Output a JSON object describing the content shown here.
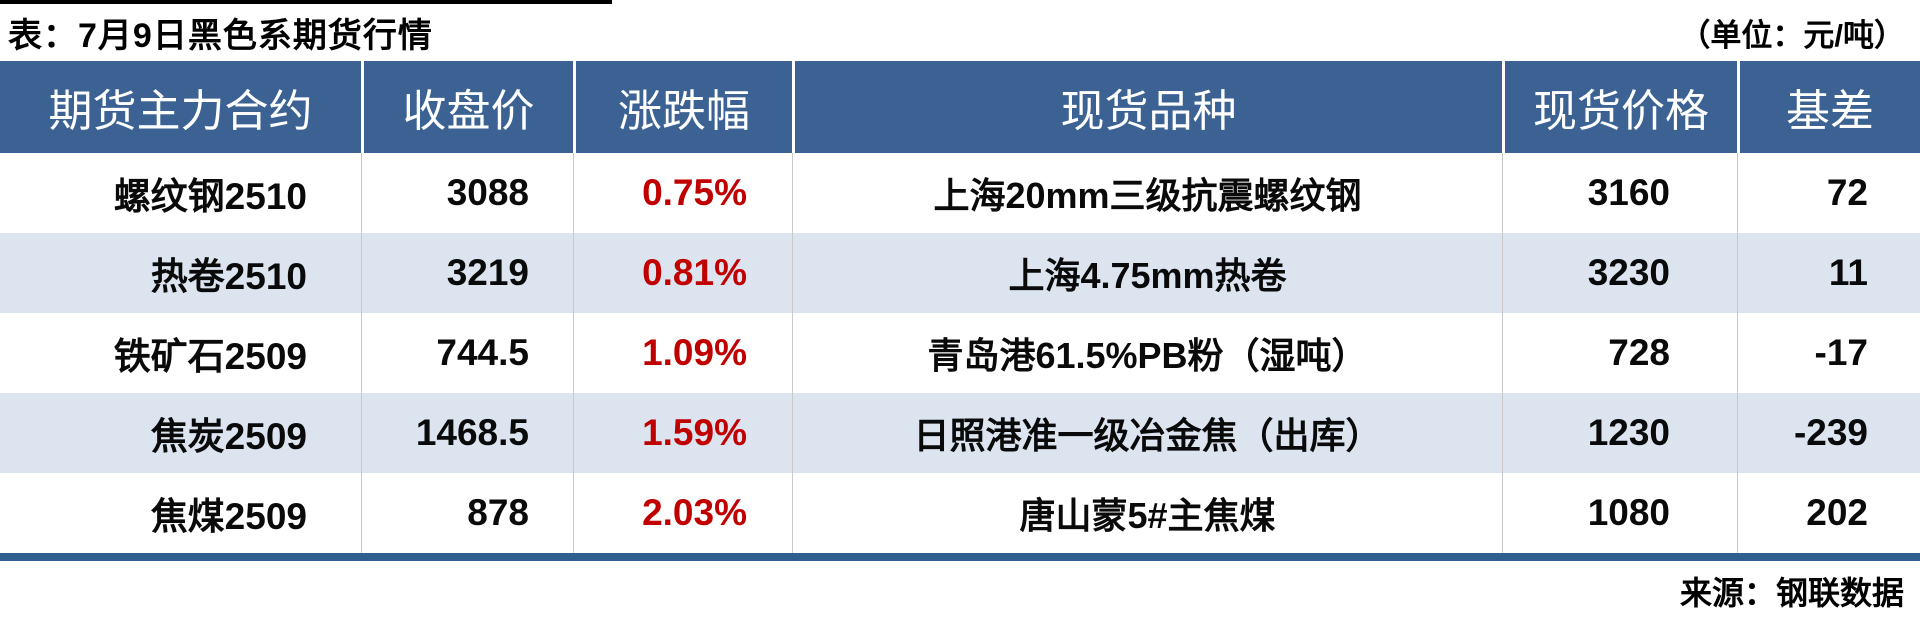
{
  "chart_data": {
    "type": "table",
    "title": "表：7月9日黑色系期货行情",
    "unit_label": "（单位：元/吨）",
    "source": "来源：钢联数据",
    "columns": [
      "期货主力合约",
      "收盘价",
      "涨跌幅",
      "现货品种",
      "现货价格",
      "基差"
    ],
    "rows": [
      [
        "螺纹钢2510",
        "3088",
        "0.75%",
        "上海20mm三级抗震螺纹钢",
        "3160",
        "72"
      ],
      [
        "热卷2510",
        "3219",
        "0.81%",
        "上海4.75mm热卷",
        "3230",
        "11"
      ],
      [
        "铁矿石2509",
        "744.5",
        "1.09%",
        "青岛港61.5%PB粉（湿吨）",
        "728",
        "-17"
      ],
      [
        "焦炭2509",
        "1468.5",
        "1.59%",
        "日照港准一级冶金焦（出库）",
        "1230",
        "-239"
      ],
      [
        "焦煤2509",
        "878",
        "2.03%",
        "唐山蒙5#主焦煤",
        "1080",
        "202"
      ]
    ],
    "layout": {
      "header_align": "center",
      "change_column_style": "red",
      "alt_row_shading": true,
      "legend": "none",
      "grid": "column-separators-only"
    },
    "colors": {
      "header_bg": "#3b6293",
      "header_text": "#ffffff",
      "alt_row_bg": "#dce4f0",
      "row_bg": "#ffffff",
      "change_red": "#c00000",
      "body_text": "#0a0a0a",
      "top_line": "#000000",
      "bottom_line": "#2f5f8f",
      "column_separator": "#c9c9c9"
    }
  }
}
